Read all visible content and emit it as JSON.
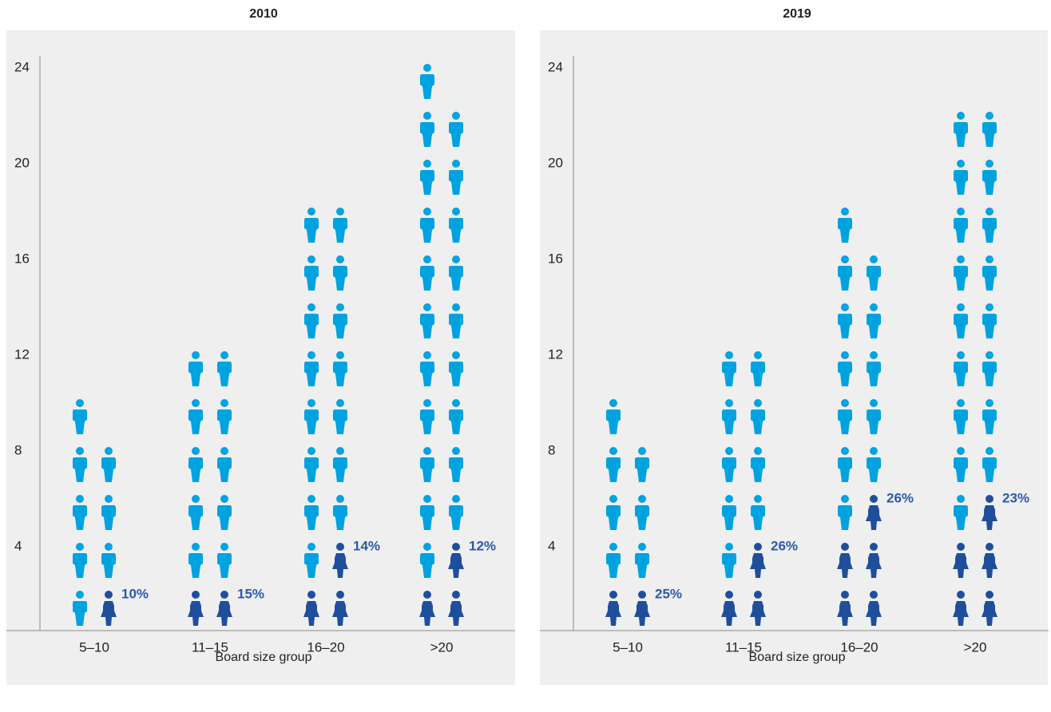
{
  "chart_data": [
    {
      "type": "pictogram",
      "title": "2010",
      "xlabel": "Board size group",
      "categories": [
        "5–10",
        "11–15",
        "16–20",
        ">20"
      ],
      "series": [
        {
          "color": "#00a3e0",
          "values": [
            8,
            10,
            15,
            20
          ]
        },
        {
          "color": "#1f4e9c",
          "values": [
            1,
            2,
            3,
            3
          ],
          "shares": [
            10,
            15,
            14,
            12
          ],
          "value_labels": [
            "10%",
            "15%",
            "14%",
            "12%"
          ]
        }
      ],
      "ylim": [
        0.5,
        24.5
      ],
      "yticks": [
        4,
        8,
        12,
        16,
        20,
        24
      ]
    },
    {
      "type": "pictogram",
      "title": "2019",
      "xlabel": "Board size group",
      "categories": [
        "5–10",
        "11–15",
        "16–20",
        ">20"
      ],
      "series": [
        {
          "color": "#00a3e0",
          "values": [
            7,
            9,
            12,
            17
          ]
        },
        {
          "color": "#1f4e9c",
          "values": [
            2,
            3,
            5,
            5
          ],
          "shares": [
            25,
            26,
            26,
            23
          ],
          "value_labels": [
            "25%",
            "26%",
            "26%",
            "23%"
          ]
        }
      ],
      "ylim": [
        0.5,
        24.5
      ],
      "yticks": [
        4,
        8,
        12,
        16,
        20,
        24
      ]
    }
  ]
}
